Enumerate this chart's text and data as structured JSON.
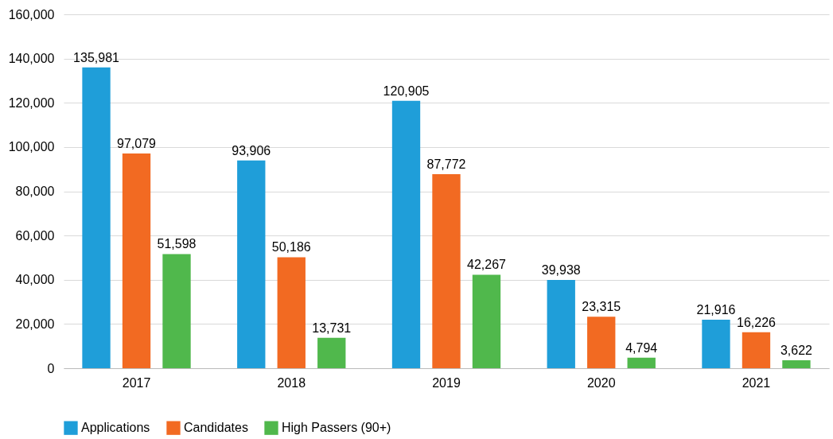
{
  "chart_data": {
    "type": "bar",
    "categories": [
      "2017",
      "2018",
      "2019",
      "2020",
      "2021"
    ],
    "series": [
      {
        "name": "Applications",
        "color": "#1f9ed9",
        "values": [
          135981,
          93906,
          120905,
          39938,
          21916
        ],
        "value_labels": [
          "135,981",
          "93,906",
          "120,905",
          "39,938",
          "21,916"
        ]
      },
      {
        "name": "Candidates",
        "color": "#f26a22",
        "values": [
          97079,
          50186,
          87772,
          23315,
          16226
        ],
        "value_labels": [
          "97,079",
          "50,186",
          "87,772",
          "23,315",
          "16,226"
        ]
      },
      {
        "name": "High Passers (90+)",
        "color": "#50b84c",
        "values": [
          51598,
          13731,
          42267,
          4794,
          3622
        ],
        "value_labels": [
          "51,598",
          "13,731",
          "42,267",
          "4,794",
          "3,622"
        ]
      }
    ],
    "ylim": [
      0,
      160000
    ],
    "yticks": [
      0,
      {
        "value": 20000,
        "label": "20,000"
      },
      {
        "value": 40000,
        "label": "40,000"
      },
      {
        "value": 60000,
        "label": "60,000"
      },
      {
        "value": 80000,
        "label": "80,000"
      },
      {
        "value": 100000,
        "label": "100,000"
      },
      {
        "value": 120000,
        "label": "120,000"
      },
      {
        "value": 140000,
        "label": "140,000"
      },
      {
        "value": 160000,
        "label": "160,000"
      }
    ],
    "grid": "y",
    "legend": "bottom"
  }
}
